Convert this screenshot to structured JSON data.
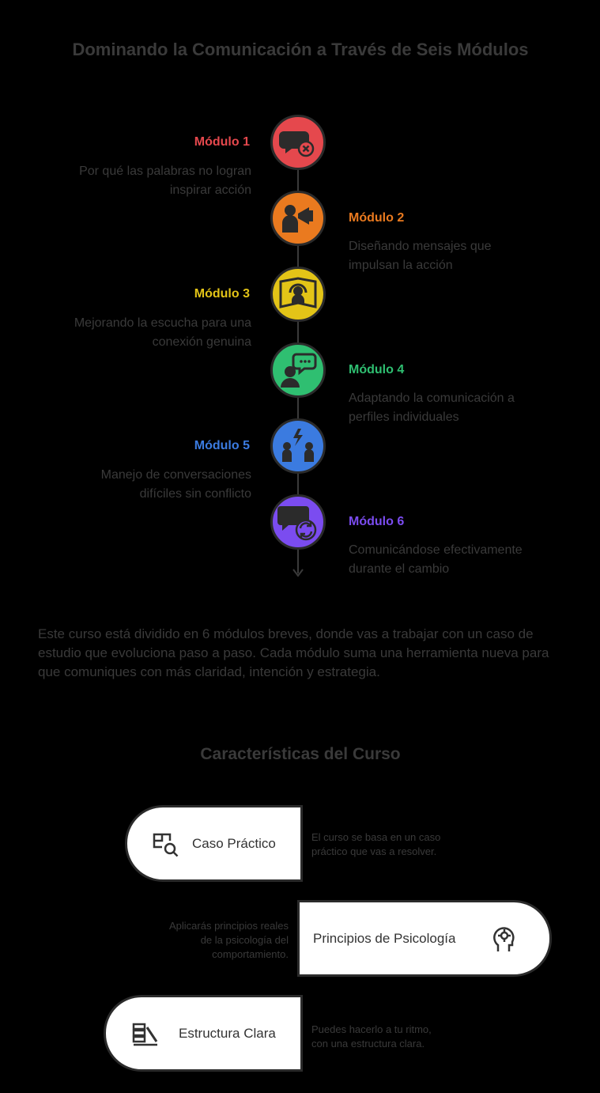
{
  "title": "Dominando la Comunicación a Través de Seis Módulos",
  "modules": [
    {
      "label": "Módulo 1",
      "line1": "Por qué las palabras no logran",
      "line2": "inspirar acción",
      "color": "#e5484d",
      "icon": "speech-bubble-x-icon"
    },
    {
      "label": "Módulo 2",
      "line1": "Diseñando mensajes que",
      "line2": "impulsan la acción",
      "color": "#ea7a1f",
      "icon": "megaphone-person-icon"
    },
    {
      "label": "Módulo 3",
      "line1": "Mejorando la escucha para una",
      "line2": "conexión genuina",
      "color": "#e3c417",
      "icon": "headset-book-icon"
    },
    {
      "label": "Módulo 4",
      "line1": "Adaptando la comunicación a",
      "line2": "perfiles individuales",
      "color": "#2fbf71",
      "icon": "person-chat-icon"
    },
    {
      "label": "Módulo 5",
      "line1": "Manejo de conversaciones",
      "line2": "difíciles sin conflicto",
      "color": "#3b7be0",
      "icon": "conflict-people-icon"
    },
    {
      "label": "Módulo 6",
      "line1": "Comunicándose efectivamente",
      "line2": "durante el cambio",
      "color": "#7b4cf0",
      "icon": "chat-refresh-icon"
    }
  ],
  "paragraph": "Este curso está dividido en 6 módulos breves, donde vas a trabajar con un caso de estudio que evoluciona paso a paso. Cada módulo suma una herramienta nueva para que comuniques con más claridad, intención y estrategia.",
  "features_title": "Características del Curso",
  "features": [
    {
      "label": "Caso Práctico",
      "note1": "El curso se basa en un caso",
      "note2": "práctico que vas a resolver.",
      "note3": "",
      "icon": "puzzle-search-icon"
    },
    {
      "label": "Principios de Psicología",
      "note1": "Aplicarás principios reales",
      "note2": "de la psicología del",
      "note3": "comportamiento.",
      "icon": "head-gear-icon"
    },
    {
      "label": "Estructura Clara",
      "note1": "Puedes hacerlo a tu ritmo,",
      "note2": "con una estructura clara.",
      "note3": "",
      "icon": "blocks-structure-icon"
    }
  ]
}
